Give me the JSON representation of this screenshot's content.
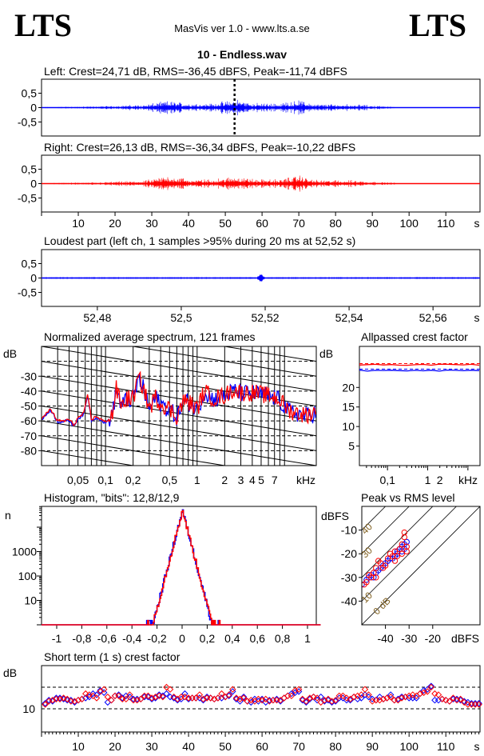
{
  "header": {
    "logo_left": "LTS",
    "logo_right": "LTS",
    "app": "MasVis ver 1.0 - www.lts.a.se",
    "file": "10 - Endless.wav"
  },
  "colors": {
    "left": "#0000ff",
    "right": "#ff0000",
    "axis": "#000000"
  },
  "chart_data": [
    {
      "id": "left",
      "type": "line",
      "title": "Left: Crest=24,71 dB, RMS=-36,45 dBFS, Peak=-11,74 dBFS",
      "yticks": [
        "0,5",
        "0",
        "-0,5"
      ],
      "ytick_values": [
        0.5,
        0,
        -0.5
      ],
      "ylim": [
        -1,
        1
      ],
      "xlim": [
        0,
        119.3
      ],
      "marker_time": 52.52,
      "envelope": [
        [
          0,
          0.01
        ],
        [
          15,
          0.03
        ],
        [
          28,
          0.07
        ],
        [
          35,
          0.16
        ],
        [
          40,
          0.1
        ],
        [
          47,
          0.1
        ],
        [
          53,
          0.2
        ],
        [
          58,
          0.1
        ],
        [
          65,
          0.1
        ],
        [
          70,
          0.17
        ],
        [
          75,
          0.08
        ],
        [
          85,
          0.08
        ],
        [
          90,
          0.05
        ],
        [
          96,
          0.02
        ],
        [
          97,
          0
        ],
        [
          119.3,
          0
        ]
      ]
    },
    {
      "id": "right",
      "type": "line",
      "title": "Right: Crest=26,13 dB, RMS=-36,34 dBFS, Peak=-10,22 dBFS",
      "yticks": [
        "0,5",
        "0",
        "-0,5"
      ],
      "ytick_values": [
        0.5,
        0,
        -0.5
      ],
      "ylim": [
        -1,
        1
      ],
      "xlim": [
        0,
        119.3
      ],
      "xticks": [
        "10",
        "20",
        "30",
        "40",
        "50",
        "60",
        "70",
        "80",
        "90",
        "100",
        "110"
      ],
      "xtick_values": [
        10,
        20,
        30,
        40,
        50,
        60,
        70,
        80,
        90,
        100,
        110
      ],
      "xunit": "s",
      "envelope": [
        [
          0,
          0.01
        ],
        [
          15,
          0.03
        ],
        [
          28,
          0.07
        ],
        [
          35,
          0.2
        ],
        [
          40,
          0.1
        ],
        [
          47,
          0.1
        ],
        [
          53,
          0.18
        ],
        [
          58,
          0.1
        ],
        [
          65,
          0.1
        ],
        [
          70,
          0.2
        ],
        [
          75,
          0.08
        ],
        [
          85,
          0.08
        ],
        [
          90,
          0.05
        ],
        [
          96,
          0.02
        ],
        [
          97,
          0
        ],
        [
          119.3,
          0
        ]
      ]
    },
    {
      "id": "loudest",
      "type": "line",
      "title": "Loudest part (left  ch, 1 samples >95% during 20 ms at 52,52 s)",
      "yticks": [
        "0,5",
        "0",
        "-0,5"
      ],
      "ytick_values": [
        0.5,
        0,
        -0.5
      ],
      "ylim": [
        -1,
        1
      ],
      "xlim": [
        52.4667,
        52.5712
      ],
      "xticks": [
        "52,48",
        "52,5",
        "52,52",
        "52,54",
        "52,56"
      ],
      "xtick_values": [
        52.48,
        52.5,
        52.52,
        52.54,
        52.56
      ],
      "xunit": "s",
      "base_amplitude": 0.02,
      "peak_time": 52.519,
      "peak_amplitude": 0.14
    },
    {
      "id": "spectrum",
      "type": "line",
      "title": "Normalized average spectrum, 121 frames",
      "ylabel": "dB",
      "yticks": [
        "-30",
        "-40",
        "-50",
        "-60",
        "-70",
        "-80"
      ],
      "ytick_values": [
        -30,
        -40,
        -50,
        -60,
        -70,
        -80
      ],
      "ylim": [
        -90,
        -10
      ],
      "xlim_hz": [
        20,
        20000
      ],
      "xscale": "log",
      "xticks": [
        "0,05",
        "0,1",
        "0,2",
        "0,5",
        "1",
        "2",
        "3",
        "4",
        "5",
        "7"
      ],
      "xtick_values_hz": [
        50,
        100,
        200,
        500,
        1000,
        2000,
        3000,
        4000,
        5000,
        7000
      ],
      "xunit": "kHz",
      "points_hz_db": [
        [
          20,
          -59
        ],
        [
          25,
          -52
        ],
        [
          30,
          -60
        ],
        [
          35,
          -60
        ],
        [
          40,
          -59
        ],
        [
          45,
          -63
        ],
        [
          50,
          -58
        ],
        [
          58,
          -55
        ],
        [
          64,
          -42
        ],
        [
          70,
          -59
        ],
        [
          80,
          -57
        ],
        [
          100,
          -61
        ],
        [
          120,
          -55
        ],
        [
          130,
          -38
        ],
        [
          150,
          -50
        ],
        [
          170,
          -45
        ],
        [
          200,
          -45
        ],
        [
          230,
          -31
        ],
        [
          260,
          -38
        ],
        [
          300,
          -52
        ],
        [
          350,
          -44
        ],
        [
          400,
          -48
        ],
        [
          500,
          -52
        ],
        [
          600,
          -57
        ],
        [
          700,
          -47
        ],
        [
          800,
          -47
        ],
        [
          1000,
          -52
        ],
        [
          1200,
          -40
        ],
        [
          1500,
          -45
        ],
        [
          2000,
          -43
        ],
        [
          2500,
          -39
        ],
        [
          3000,
          -41
        ],
        [
          4000,
          -41
        ],
        [
          5000,
          -42
        ],
        [
          7000,
          -44
        ],
        [
          8000,
          -46
        ],
        [
          10000,
          -53
        ],
        [
          15000,
          -56
        ],
        [
          20000,
          -54
        ]
      ]
    },
    {
      "id": "allpassed",
      "type": "line",
      "title": "Allpassed crest factor",
      "ylabel": "dB",
      "yticks": [
        "20",
        "15",
        "10",
        "5"
      ],
      "ytick_values": [
        20,
        15,
        10,
        5
      ],
      "ylim": [
        0,
        30.5
      ],
      "xscale": "log",
      "xticks": [
        "0,1",
        "1",
        "2"
      ],
      "xtick_values_hz": [
        100,
        1000,
        2000
      ],
      "xunit": "kHz",
      "series": [
        {
          "name": "left",
          "value": 24.3,
          "reference": 24.7
        },
        {
          "name": "right",
          "value": 25.8,
          "reference": 26.1
        }
      ]
    },
    {
      "id": "histogram",
      "type": "line",
      "title": "Histogram, \"bits\": 12,8/12,9",
      "ylabel": "n",
      "yticks": [
        "1000",
        "100",
        "10"
      ],
      "ytick_values": [
        1000,
        100,
        10
      ],
      "yscale": "log",
      "ylim": [
        1,
        60000
      ],
      "xlim": [
        -1.1,
        1.1
      ],
      "xticks": [
        "-1",
        "-0,8",
        "-0,6",
        "-0,4",
        "-0,2",
        "0",
        "0,2",
        "0,4",
        "0,6",
        "0,8",
        "1"
      ],
      "xtick_values": [
        -1,
        -0.8,
        -0.6,
        -0.4,
        -0.2,
        0,
        0.2,
        0.4,
        0.6,
        0.8,
        1
      ],
      "peak_count": 50000,
      "decay_scale": 0.022,
      "max_abs_value": 0.3
    },
    {
      "id": "peak_vs_rms",
      "type": "scatter",
      "title": "Peak vs RMS level",
      "ylabel": "dBFS",
      "xlabel": "dBFS",
      "xlim": [
        -50,
        0
      ],
      "ylim": [
        -50,
        0
      ],
      "xticks": [
        "-40",
        "-30",
        "-20"
      ],
      "xtick_values": [
        -40,
        -30,
        -20
      ],
      "yticks": [
        "-10",
        "-20",
        "-30",
        "-40"
      ],
      "ytick_values": [
        -10,
        -20,
        -30,
        -40
      ],
      "crest_lines": [
        0,
        10,
        20,
        30,
        40
      ],
      "crest_labels": [
        "0 dB",
        "10",
        "30",
        "40"
      ],
      "points_left": [
        [
          -50,
          -33
        ],
        [
          -48,
          -31
        ],
        [
          -47,
          -30
        ],
        [
          -46,
          -29
        ],
        [
          -45,
          -30
        ],
        [
          -44,
          -28
        ],
        [
          -43,
          -27
        ],
        [
          -42,
          -26
        ],
        [
          -41,
          -25
        ],
        [
          -40,
          -24
        ],
        [
          -39,
          -23
        ],
        [
          -38,
          -22
        ],
        [
          -37,
          -22
        ],
        [
          -36,
          -21
        ],
        [
          -35,
          -20
        ],
        [
          -35,
          -19
        ],
        [
          -34,
          -18
        ],
        [
          -33,
          -19
        ],
        [
          -33,
          -17
        ],
        [
          -32,
          -16
        ],
        [
          -32,
          -18
        ],
        [
          -31,
          -15
        ]
      ],
      "points_right": [
        [
          -49,
          -33
        ],
        [
          -48,
          -32
        ],
        [
          -47,
          -29
        ],
        [
          -46,
          -30
        ],
        [
          -45,
          -28
        ],
        [
          -44,
          -30
        ],
        [
          -44,
          -26
        ],
        [
          -43,
          -23
        ],
        [
          -42,
          -24
        ],
        [
          -41,
          -26
        ],
        [
          -40,
          -25
        ],
        [
          -39,
          -22
        ],
        [
          -38,
          -20
        ],
        [
          -37,
          -21
        ],
        [
          -36,
          -23
        ],
        [
          -36,
          -19
        ],
        [
          -35,
          -21
        ],
        [
          -34,
          -18
        ],
        [
          -33,
          -20
        ],
        [
          -33,
          -16
        ],
        [
          -32,
          -13
        ],
        [
          -32,
          -11
        ],
        [
          -31,
          -17
        ],
        [
          -31,
          -19
        ]
      ]
    },
    {
      "id": "short_term_crest",
      "type": "scatter",
      "title": "Short term (1 s) crest factor",
      "ylabel": "dB",
      "yticks": [
        "10"
      ],
      "ytick_values": [
        10
      ],
      "dashed_lines": [
        10,
        20
      ],
      "ylim": [
        0,
        30.5
      ],
      "xlim": [
        0,
        119.3
      ],
      "xticks": [
        "10",
        "20",
        "30",
        "40",
        "50",
        "60",
        "70",
        "80",
        "90",
        "100",
        "110"
      ],
      "xtick_values": [
        10,
        20,
        30,
        40,
        50,
        60,
        70,
        80,
        90,
        100,
        110
      ],
      "xunit": "s",
      "right": [
        12,
        13.5,
        14,
        14.5,
        14.5,
        15,
        14.5,
        13.5,
        13.5,
        14,
        14.5,
        17,
        16.5,
        16,
        15,
        18,
        19,
        15.5,
        14,
        16,
        16,
        14.5,
        14.5,
        16.5,
        14,
        14,
        14.5,
        16,
        16,
        15,
        15.5,
        16,
        15.5,
        20,
        19,
        15.5,
        14.5,
        15.5,
        15.5,
        15,
        15,
        15,
        16.5,
        14.5,
        15,
        15,
        14.5,
        15,
        17,
        15.5,
        16.5,
        19,
        15,
        14.5,
        15,
        13.5,
        14,
        13.5,
        14.5,
        14,
        14.5,
        13.5,
        14,
        14,
        14,
        15,
        16,
        16,
        18.5,
        19,
        14.5,
        13.5,
        15,
        15.5,
        15,
        13,
        14,
        14.5,
        13.5,
        14,
        16,
        16,
        15,
        14.5,
        15.5,
        16,
        16.5,
        19,
        16.5,
        13.5,
        14,
        14,
        14.5,
        15,
        15.5,
        14,
        14,
        15,
        15.5,
        16,
        16.5,
        16,
        17,
        17.5,
        18,
        20,
        17,
        16.5,
        14.5,
        14,
        13.5,
        15,
        14,
        14.5,
        13,
        12,
        12,
        12,
        12
      ],
      "left": [
        12.5,
        14,
        13.5,
        15,
        15,
        14.5,
        14,
        14,
        13,
        14,
        14.5,
        15,
        15.5,
        17,
        16.5,
        18.5,
        17.5,
        13,
        14,
        16,
        16.5,
        15,
        16,
        15.5,
        14.5,
        14.5,
        14.5,
        15.5,
        15.5,
        14.5,
        15,
        16.5,
        16,
        17,
        15.5,
        15,
        14,
        14.5,
        17,
        14.5,
        15,
        15,
        15,
        14,
        15.5,
        15,
        14.5,
        15,
        15,
        15.5,
        16,
        18,
        14.5,
        13.5,
        15.5,
        13.5,
        13,
        14.5,
        13.5,
        14.5,
        13,
        14,
        14,
        14.5,
        13.5,
        15,
        16,
        17,
        17.5,
        18,
        14,
        13,
        14.5,
        15.5,
        14,
        15.5,
        13.5,
        14,
        13,
        13.5,
        15,
        15,
        14,
        14,
        15.5,
        14.5,
        15,
        16.5,
        15.5,
        14.5,
        14,
        15.5,
        14.5,
        15,
        16.5,
        14,
        14.5,
        15.5,
        15.5,
        15,
        15,
        15,
        17,
        18.5,
        19,
        20.5,
        14,
        14,
        14.5,
        14,
        13.5,
        14.5,
        14.5,
        14,
        13.5,
        13,
        12.5,
        12.5,
        12.5
      ]
    }
  ]
}
